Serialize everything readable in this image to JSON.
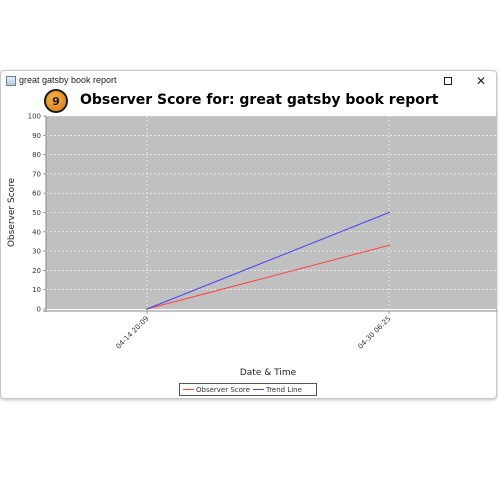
{
  "window": {
    "title": "great gatsby book report",
    "icons": {
      "app": "java-window-icon",
      "maximize": "maximize-icon",
      "close": "close-icon"
    },
    "close_glyph": "✕"
  },
  "badge": {
    "number": "9",
    "colors": {
      "fill": "#f0a030",
      "ring": "#1a1a1a"
    }
  },
  "chart_data": {
    "type": "line",
    "title": "Observer Score for: great gatsby book report",
    "xlabel": "Date & Time",
    "ylabel": "Observer Score",
    "ylim": [
      0,
      100
    ],
    "yticks": [
      0,
      10,
      20,
      30,
      40,
      50,
      60,
      70,
      80,
      90,
      100
    ],
    "x": [
      "04-14 20:09",
      "04-30 06:25"
    ],
    "series": [
      {
        "name": "Observer Score",
        "color": "#ff4040",
        "values": [
          0,
          33
        ]
      },
      {
        "name": "Trend Line",
        "color": "#4444ff",
        "values": [
          0,
          50
        ]
      }
    ],
    "grid": true,
    "legend": "bottom-center",
    "plot_background": "#c0c0c0"
  }
}
